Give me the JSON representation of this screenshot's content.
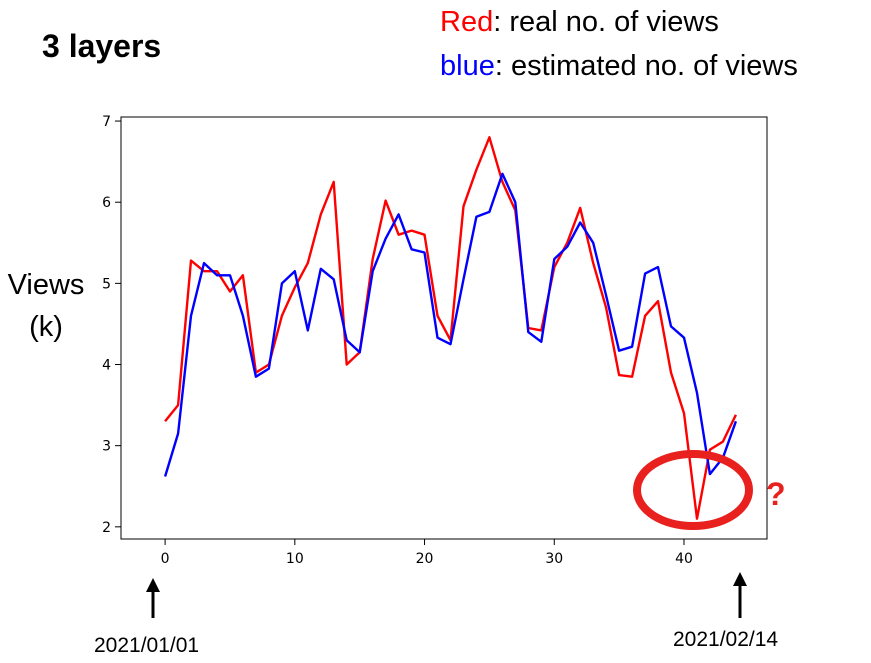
{
  "slide": {
    "title": "3 layers",
    "legend": {
      "red_key": "Red",
      "red_text": ": real no. of views",
      "blue_key": "blue",
      "blue_text": ":  estimated no. of views"
    },
    "ylabel_line1": "Views",
    "ylabel_line2": "(k)",
    "start_date": "2021/01/01",
    "end_date": "2021/02/14",
    "question_mark": "?",
    "colors": {
      "red": "#ff0000",
      "blue": "#0000ff",
      "highlight": "#e8201e"
    }
  },
  "chart_data": {
    "type": "line",
    "x": [
      0,
      1,
      2,
      3,
      4,
      5,
      6,
      7,
      8,
      9,
      10,
      11,
      12,
      13,
      14,
      15,
      16,
      17,
      18,
      19,
      20,
      21,
      22,
      23,
      24,
      25,
      26,
      27,
      28,
      29,
      30,
      31,
      32,
      33,
      34,
      35,
      36,
      37,
      38,
      39,
      40,
      41,
      42,
      43,
      44
    ],
    "series": [
      {
        "color": "#ff0000",
        "values": [
          3.3,
          3.5,
          5.28,
          5.15,
          5.15,
          4.9,
          5.1,
          3.9,
          4.0,
          4.6,
          4.95,
          5.25,
          5.85,
          6.25,
          4.0,
          4.15,
          5.3,
          6.02,
          5.6,
          5.65,
          5.6,
          4.6,
          4.3,
          5.95,
          6.4,
          6.8,
          6.25,
          5.9,
          4.45,
          4.42,
          5.2,
          5.5,
          5.93,
          5.25,
          4.7,
          3.87,
          3.85,
          4.6,
          4.78,
          3.9,
          3.4,
          2.1,
          2.95,
          3.05,
          3.38
        ]
      },
      {
        "color": "#0000ff",
        "values": [
          2.62,
          3.15,
          4.6,
          5.25,
          5.1,
          5.1,
          4.6,
          3.85,
          3.95,
          5.0,
          5.15,
          4.42,
          5.18,
          5.05,
          4.3,
          4.15,
          5.15,
          5.55,
          5.85,
          5.42,
          5.38,
          4.33,
          4.25,
          5.05,
          5.82,
          5.88,
          6.35,
          6.0,
          4.4,
          4.28,
          5.3,
          5.45,
          5.75,
          5.5,
          4.85,
          4.17,
          4.22,
          5.12,
          5.2,
          4.47,
          4.33,
          3.65,
          2.65,
          2.85,
          3.3
        ]
      }
    ],
    "xticks": [
      0,
      10,
      20,
      30,
      40
    ],
    "yticks": [
      2,
      3,
      4,
      5,
      6,
      7
    ],
    "xlim": [
      -3.4,
      46.4
    ],
    "ylim": [
      1.85,
      7.05
    ],
    "grid": false
  }
}
